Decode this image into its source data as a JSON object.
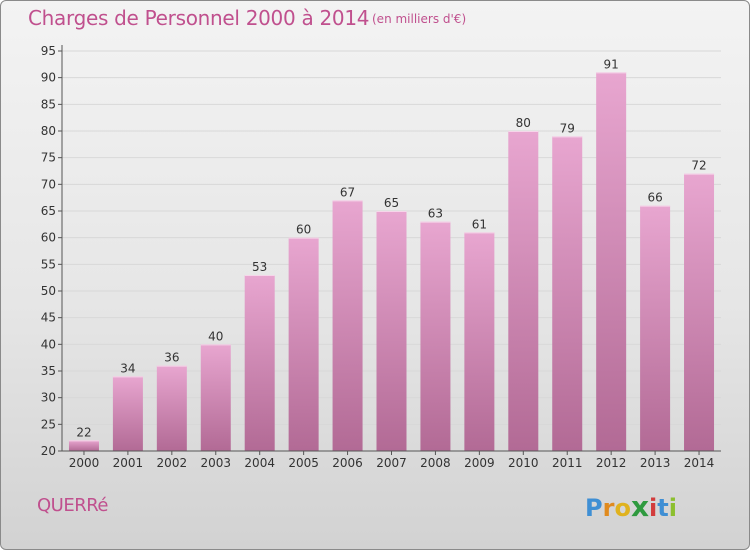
{
  "header": {
    "title": "Charges de Personnel 2000 à 2014",
    "subtitle": "(en milliers d'€)"
  },
  "footer": {
    "commune": "QUERRé",
    "logo_letters": [
      "P",
      "r",
      "o",
      "x",
      "i",
      "t",
      "i"
    ],
    "logo_colors": [
      "#3f8fd4",
      "#e08a1e",
      "#e0b21e",
      "#2f9a3f",
      "#d23c3c",
      "#3f8fd4",
      "#8cbf2f"
    ]
  },
  "colors": {
    "title": "#c0508e",
    "bar_top": "#e8a6d0",
    "bar_bottom": "#b26a95",
    "grid": "#d8d8d8",
    "axis": "#555555",
    "text": "#333333"
  },
  "chart_data": {
    "type": "bar",
    "categories": [
      "2000",
      "2001",
      "2002",
      "2003",
      "2004",
      "2005",
      "2006",
      "2007",
      "2008",
      "2009",
      "2010",
      "2011",
      "2012",
      "2013",
      "2014"
    ],
    "values": [
      22,
      34,
      36,
      40,
      53,
      60,
      67,
      65,
      63,
      61,
      80,
      79,
      91,
      66,
      72
    ],
    "ylim": [
      20,
      95
    ],
    "yticks": [
      20,
      25,
      30,
      35,
      40,
      45,
      50,
      55,
      60,
      65,
      70,
      75,
      80,
      85,
      90,
      95
    ],
    "grid": true
  }
}
